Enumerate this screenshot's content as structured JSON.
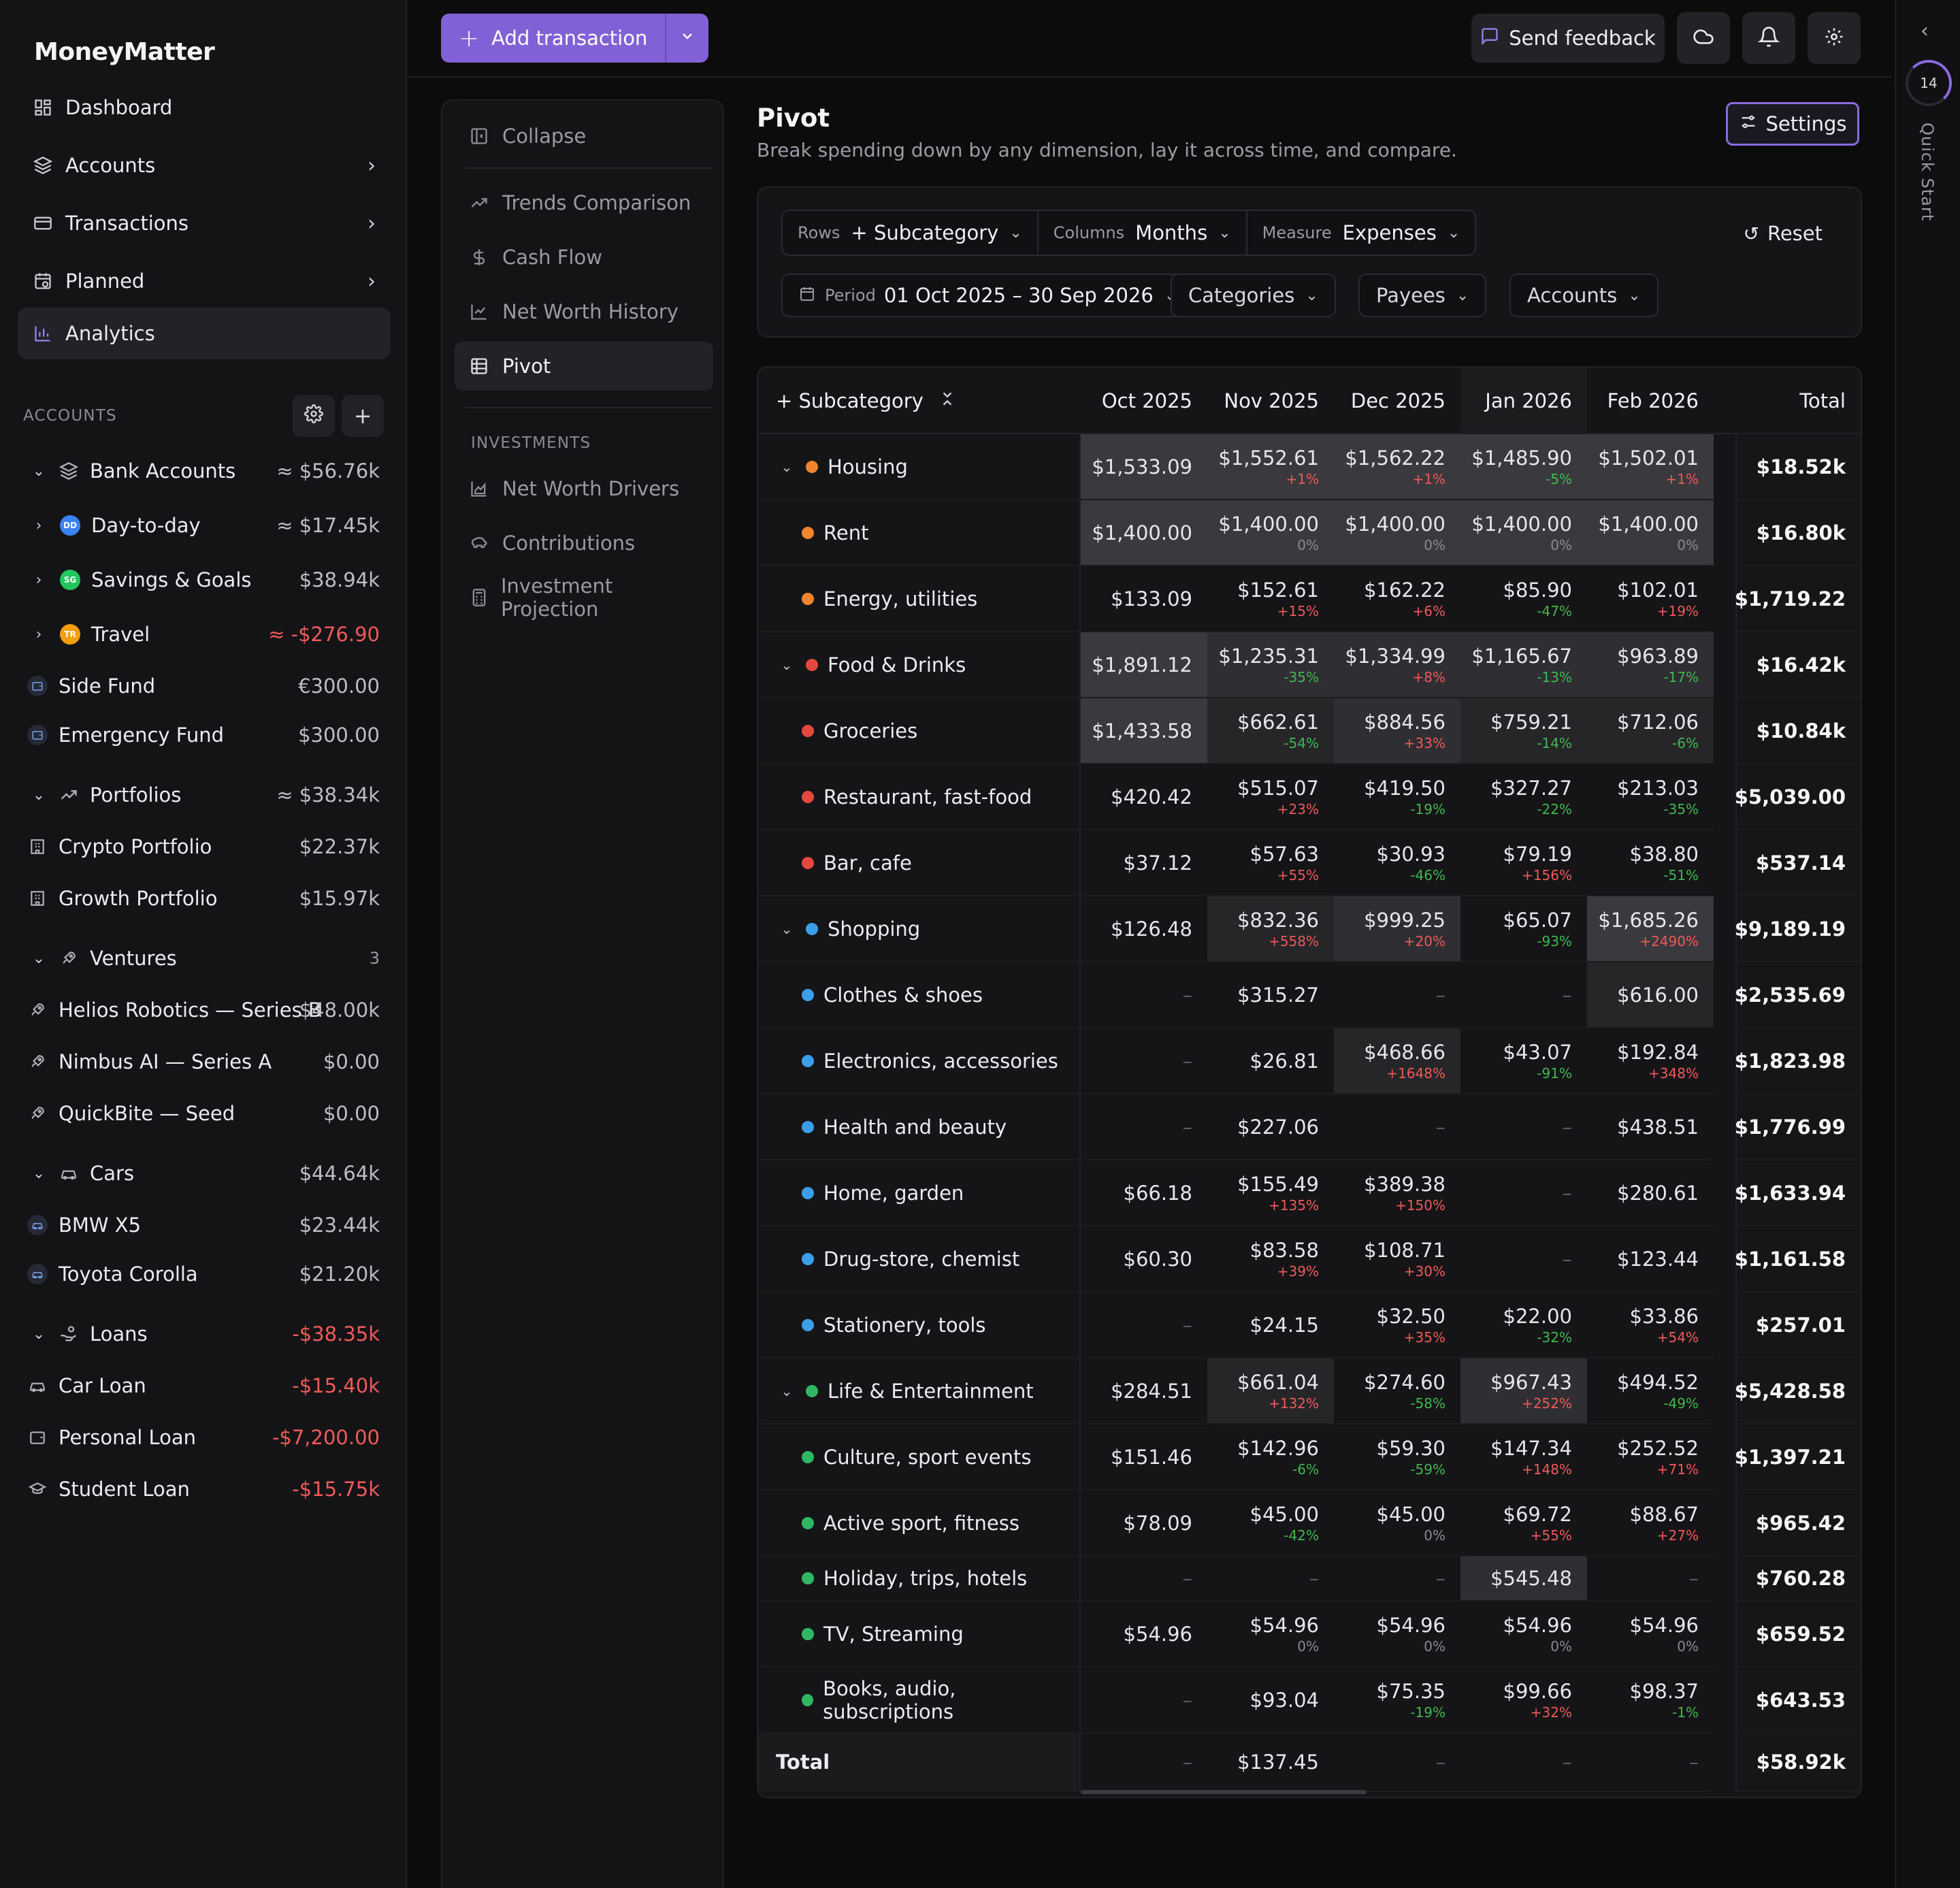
{
  "app": {
    "brand": "MoneyMatter"
  },
  "nav": [
    {
      "label": "Dashboard",
      "icon": "dashboard-icon",
      "chevron": false
    },
    {
      "label": "Accounts",
      "icon": "layers-icon",
      "chevron": true
    },
    {
      "label": "Transactions",
      "icon": "card-icon",
      "chevron": true
    },
    {
      "label": "Planned",
      "icon": "calendar-clock-icon",
      "chevron": true
    },
    {
      "label": "Analytics",
      "icon": "bar-chart-icon",
      "chevron": false,
      "active": true
    }
  ],
  "accounts_section": {
    "label": "ACCOUNTS"
  },
  "accounts": [
    {
      "kind": "group",
      "label": "Bank Accounts",
      "amount": "≈ $56.76k",
      "icon": "layers-icon"
    },
    {
      "kind": "child-exp",
      "label": "Day-to-day",
      "amount": "≈ $17.45k",
      "badge": "DD",
      "badge_color": "#3b82f6"
    },
    {
      "kind": "child-exp",
      "label": "Savings & Goals",
      "amount": "$38.94k",
      "badge": "SG",
      "badge_color": "#22c55e"
    },
    {
      "kind": "child-exp",
      "label": "Travel",
      "amount": "≈ -$276.90",
      "badge": "TR",
      "badge_color": "#f59e0b",
      "negative": true
    },
    {
      "kind": "child",
      "label": "Side Fund",
      "amount": "€300.00",
      "icon": "wallet-icon"
    },
    {
      "kind": "child",
      "label": "Emergency Fund",
      "amount": "$300.00",
      "icon": "wallet-icon"
    },
    {
      "kind": "group",
      "label": "Portfolios",
      "amount": "≈ $38.34k",
      "icon": "trend-icon"
    },
    {
      "kind": "flat",
      "label": "Crypto Portfolio",
      "amount": "$22.37k",
      "icon": "building-icon"
    },
    {
      "kind": "flat",
      "label": "Growth Portfolio",
      "amount": "$15.97k",
      "icon": "building-icon"
    },
    {
      "kind": "group",
      "label": "Ventures",
      "amount": "3",
      "icon": "rocket-icon",
      "count": true
    },
    {
      "kind": "flat",
      "label": "Helios Robotics — Series B",
      "amount": "$48.00k",
      "icon": "rocket-icon"
    },
    {
      "kind": "flat",
      "label": "Nimbus AI — Series A",
      "amount": "$0.00",
      "icon": "rocket-icon"
    },
    {
      "kind": "flat",
      "label": "QuickBite — Seed",
      "amount": "$0.00",
      "icon": "rocket-icon"
    },
    {
      "kind": "group",
      "label": "Cars",
      "amount": "$44.64k",
      "icon": "car-icon"
    },
    {
      "kind": "child",
      "label": "BMW X5",
      "amount": "$23.44k",
      "icon": "car-icon"
    },
    {
      "kind": "child",
      "label": "Toyota Corolla",
      "amount": "$21.20k",
      "icon": "car-icon"
    },
    {
      "kind": "group",
      "label": "Loans",
      "amount": "-$38.35k",
      "icon": "hand-coins-icon",
      "negative": true
    },
    {
      "kind": "flat",
      "label": "Car Loan",
      "amount": "-$15.40k",
      "icon": "car-icon",
      "negative": true
    },
    {
      "kind": "flat",
      "label": "Personal Loan",
      "amount": "-$7,200.00",
      "icon": "wallet-icon",
      "negative": true
    },
    {
      "kind": "flat",
      "label": "Student Loan",
      "amount": "-$15.75k",
      "icon": "graduation-cap-icon",
      "negative": true
    }
  ],
  "topbar": {
    "add_label": "Add transaction",
    "feedback_label": "Send feedback"
  },
  "rail": {
    "progress": "14",
    "label": "Quick Start"
  },
  "submenu": {
    "collapse": "Collapse",
    "items": [
      "Trends Comparison",
      "Cash Flow",
      "Net Worth History",
      "Pivot"
    ],
    "investments_label": "INVESTMENTS",
    "investments": [
      "Net Worth Drivers",
      "Contributions",
      "Investment Projection"
    ]
  },
  "page": {
    "title": "Pivot",
    "subtitle": "Break spending down by any dimension, lay it across time, and compare.",
    "settings_label": "Settings"
  },
  "filters": {
    "rows_key": "Rows",
    "rows_val": "+ Subcategory",
    "cols_key": "Columns",
    "cols_val": "Months",
    "measure_key": "Measure",
    "measure_val": "Expenses",
    "reset": "Reset",
    "period_key": "Period",
    "period_val": "01 Oct 2025 – 30 Sep 2026",
    "categories": "Categories",
    "payees": "Payees",
    "accounts": "Accounts"
  },
  "table": {
    "row_header": "+ Subcategory",
    "columns": [
      "Oct 2025",
      "Nov 2025",
      "Dec 2025",
      "Jan 2026",
      "Feb 2026"
    ],
    "total_header": "Total",
    "rows": [
      {
        "name": "Housing",
        "group": true,
        "color": "#f0852d",
        "cells": [
          [
            "$1,533.09",
            ""
          ],
          [
            "$1,552.61",
            "+1%"
          ],
          [
            "$1,562.22",
            "+1%"
          ],
          [
            "$1,485.90",
            "-5%"
          ],
          [
            "$1,502.01",
            "+1%"
          ]
        ],
        "shade": [
          3,
          3,
          3,
          3,
          3
        ],
        "total": "$18.52k"
      },
      {
        "name": "Rent",
        "group": false,
        "color": "#f0852d",
        "cells": [
          [
            "$1,400.00",
            ""
          ],
          [
            "$1,400.00",
            "0%"
          ],
          [
            "$1,400.00",
            "0%"
          ],
          [
            "$1,400.00",
            "0%"
          ],
          [
            "$1,400.00",
            "0%"
          ]
        ],
        "shade": [
          3,
          3,
          3,
          3,
          3
        ],
        "total": "$16.80k"
      },
      {
        "name": "Energy, utilities",
        "group": false,
        "color": "#f0852d",
        "cells": [
          [
            "$133.09",
            ""
          ],
          [
            "$152.61",
            "+15%"
          ],
          [
            "$162.22",
            "+6%"
          ],
          [
            "$85.90",
            "-47%"
          ],
          [
            "$102.01",
            "+19%"
          ]
        ],
        "shade": [
          0,
          0,
          0,
          0,
          0
        ],
        "total": "$1,719.22"
      },
      {
        "name": "Food & Drinks",
        "group": true,
        "color": "#e5483c",
        "cells": [
          [
            "$1,891.12",
            ""
          ],
          [
            "$1,235.31",
            "-35%"
          ],
          [
            "$1,334.99",
            "+8%"
          ],
          [
            "$1,165.67",
            "-13%"
          ],
          [
            "$963.89",
            "-17%"
          ]
        ],
        "shade": [
          3,
          2,
          2,
          2,
          2
        ],
        "total": "$16.42k"
      },
      {
        "name": "Groceries",
        "group": false,
        "color": "#e5483c",
        "cells": [
          [
            "$1,433.58",
            ""
          ],
          [
            "$662.61",
            "-54%"
          ],
          [
            "$884.56",
            "+33%"
          ],
          [
            "$759.21",
            "-14%"
          ],
          [
            "$712.06",
            "-6%"
          ]
        ],
        "shade": [
          3,
          1,
          2,
          1,
          1
        ],
        "total": "$10.84k"
      },
      {
        "name": "Restaurant, fast-food",
        "group": false,
        "color": "#e5483c",
        "cells": [
          [
            "$420.42",
            ""
          ],
          [
            "$515.07",
            "+23%"
          ],
          [
            "$419.50",
            "-19%"
          ],
          [
            "$327.27",
            "-22%"
          ],
          [
            "$213.03",
            "-35%"
          ]
        ],
        "shade": [
          0,
          0,
          0,
          0,
          0
        ],
        "total": "$5,039.00"
      },
      {
        "name": "Bar, cafe",
        "group": false,
        "color": "#e5483c",
        "cells": [
          [
            "$37.12",
            ""
          ],
          [
            "$57.63",
            "+55%"
          ],
          [
            "$30.93",
            "-46%"
          ],
          [
            "$79.19",
            "+156%"
          ],
          [
            "$38.80",
            "-51%"
          ]
        ],
        "shade": [
          0,
          0,
          0,
          0,
          0
        ],
        "total": "$537.14"
      },
      {
        "name": "Shopping",
        "group": true,
        "color": "#3b9ee8",
        "cells": [
          [
            "$126.48",
            ""
          ],
          [
            "$832.36",
            "+558%"
          ],
          [
            "$999.25",
            "+20%"
          ],
          [
            "$65.07",
            "-93%"
          ],
          [
            "$1,685.26",
            "+2490%"
          ]
        ],
        "shade": [
          0,
          1,
          2,
          0,
          3
        ],
        "total": "$9,189.19"
      },
      {
        "name": "Clothes & shoes",
        "group": false,
        "color": "#3b9ee8",
        "cells": [
          [
            "–",
            ""
          ],
          [
            "$315.27",
            ""
          ],
          [
            "–",
            ""
          ],
          [
            "–",
            ""
          ],
          [
            "$616.00",
            ""
          ]
        ],
        "shade": [
          0,
          0,
          0,
          0,
          1
        ],
        "total": "$2,535.69"
      },
      {
        "name": "Electronics, accessories",
        "group": false,
        "color": "#3b9ee8",
        "cells": [
          [
            "–",
            ""
          ],
          [
            "$26.81",
            ""
          ],
          [
            "$468.66",
            "+1648%"
          ],
          [
            "$43.07",
            "-91%"
          ],
          [
            "$192.84",
            "+348%"
          ]
        ],
        "shade": [
          0,
          0,
          1,
          0,
          0
        ],
        "total": "$1,823.98"
      },
      {
        "name": "Health and beauty",
        "group": false,
        "color": "#3b9ee8",
        "cells": [
          [
            "–",
            ""
          ],
          [
            "$227.06",
            ""
          ],
          [
            "–",
            ""
          ],
          [
            "–",
            ""
          ],
          [
            "$438.51",
            ""
          ]
        ],
        "shade": [
          0,
          0,
          0,
          0,
          0
        ],
        "total": "$1,776.99"
      },
      {
        "name": "Home, garden",
        "group": false,
        "color": "#3b9ee8",
        "cells": [
          [
            "$66.18",
            ""
          ],
          [
            "$155.49",
            "+135%"
          ],
          [
            "$389.38",
            "+150%"
          ],
          [
            "–",
            ""
          ],
          [
            "$280.61",
            ""
          ]
        ],
        "shade": [
          0,
          0,
          0,
          0,
          0
        ],
        "total": "$1,633.94"
      },
      {
        "name": "Drug-store, chemist",
        "group": false,
        "color": "#3b9ee8",
        "cells": [
          [
            "$60.30",
            ""
          ],
          [
            "$83.58",
            "+39%"
          ],
          [
            "$108.71",
            "+30%"
          ],
          [
            "–",
            ""
          ],
          [
            "$123.44",
            ""
          ]
        ],
        "shade": [
          0,
          0,
          0,
          0,
          0
        ],
        "total": "$1,161.58"
      },
      {
        "name": "Stationery, tools",
        "group": false,
        "color": "#3b9ee8",
        "cells": [
          [
            "–",
            ""
          ],
          [
            "$24.15",
            ""
          ],
          [
            "$32.50",
            "+35%"
          ],
          [
            "$22.00",
            "-32%"
          ],
          [
            "$33.86",
            "+54%"
          ]
        ],
        "shade": [
          0,
          0,
          0,
          0,
          0
        ],
        "total": "$257.01"
      },
      {
        "name": "Life & Entertainment",
        "group": true,
        "color": "#2fb864",
        "cells": [
          [
            "$284.51",
            ""
          ],
          [
            "$661.04",
            "+132%"
          ],
          [
            "$274.60",
            "-58%"
          ],
          [
            "$967.43",
            "+252%"
          ],
          [
            "$494.52",
            "-49%"
          ]
        ],
        "shade": [
          0,
          1,
          0,
          2,
          0
        ],
        "total": "$5,428.58"
      },
      {
        "name": "Culture, sport events",
        "group": false,
        "color": "#2fb864",
        "cells": [
          [
            "$151.46",
            ""
          ],
          [
            "$142.96",
            "-6%"
          ],
          [
            "$59.30",
            "-59%"
          ],
          [
            "$147.34",
            "+148%"
          ],
          [
            "$252.52",
            "+71%"
          ]
        ],
        "shade": [
          0,
          0,
          0,
          0,
          0
        ],
        "total": "$1,397.21"
      },
      {
        "name": "Active sport, fitness",
        "group": false,
        "color": "#2fb864",
        "cells": [
          [
            "$78.09",
            ""
          ],
          [
            "$45.00",
            "-42%"
          ],
          [
            "$45.00",
            "0%"
          ],
          [
            "$69.72",
            "+55%"
          ],
          [
            "$88.67",
            "+27%"
          ]
        ],
        "shade": [
          0,
          0,
          0,
          0,
          0
        ],
        "total": "$965.42"
      },
      {
        "name": "Holiday, trips, hotels",
        "group": false,
        "color": "#2fb864",
        "cells": [
          [
            "–",
            ""
          ],
          [
            "–",
            ""
          ],
          [
            "–",
            ""
          ],
          [
            "$545.48",
            ""
          ],
          [
            "–",
            ""
          ]
        ],
        "shade": [
          0,
          0,
          0,
          2,
          0
        ],
        "total": "$760.28"
      },
      {
        "name": "TV, Streaming",
        "group": false,
        "color": "#2fb864",
        "cells": [
          [
            "$54.96",
            ""
          ],
          [
            "$54.96",
            "0%"
          ],
          [
            "$54.96",
            "0%"
          ],
          [
            "$54.96",
            "0%"
          ],
          [
            "$54.96",
            "0%"
          ]
        ],
        "shade": [
          0,
          0,
          0,
          0,
          0
        ],
        "total": "$659.52"
      },
      {
        "name": "Books, audio, subscriptions",
        "group": false,
        "color": "#2fb864",
        "cells": [
          [
            "–",
            ""
          ],
          [
            "$93.04",
            ""
          ],
          [
            "$75.35",
            "-19%"
          ],
          [
            "$99.66",
            "+32%"
          ],
          [
            "$98.37",
            "-1%"
          ]
        ],
        "shade": [
          0,
          0,
          0,
          0,
          0
        ],
        "total": "$643.53"
      },
      {
        "name": "Total",
        "group": "total",
        "color": "",
        "cells": [
          [
            "–",
            ""
          ],
          [
            "$137.45",
            ""
          ],
          [
            "–",
            ""
          ],
          [
            "–",
            ""
          ],
          [
            "–",
            ""
          ]
        ],
        "shade": [
          0,
          0,
          0,
          0,
          0
        ],
        "total": "$58.92k"
      }
    ]
  }
}
